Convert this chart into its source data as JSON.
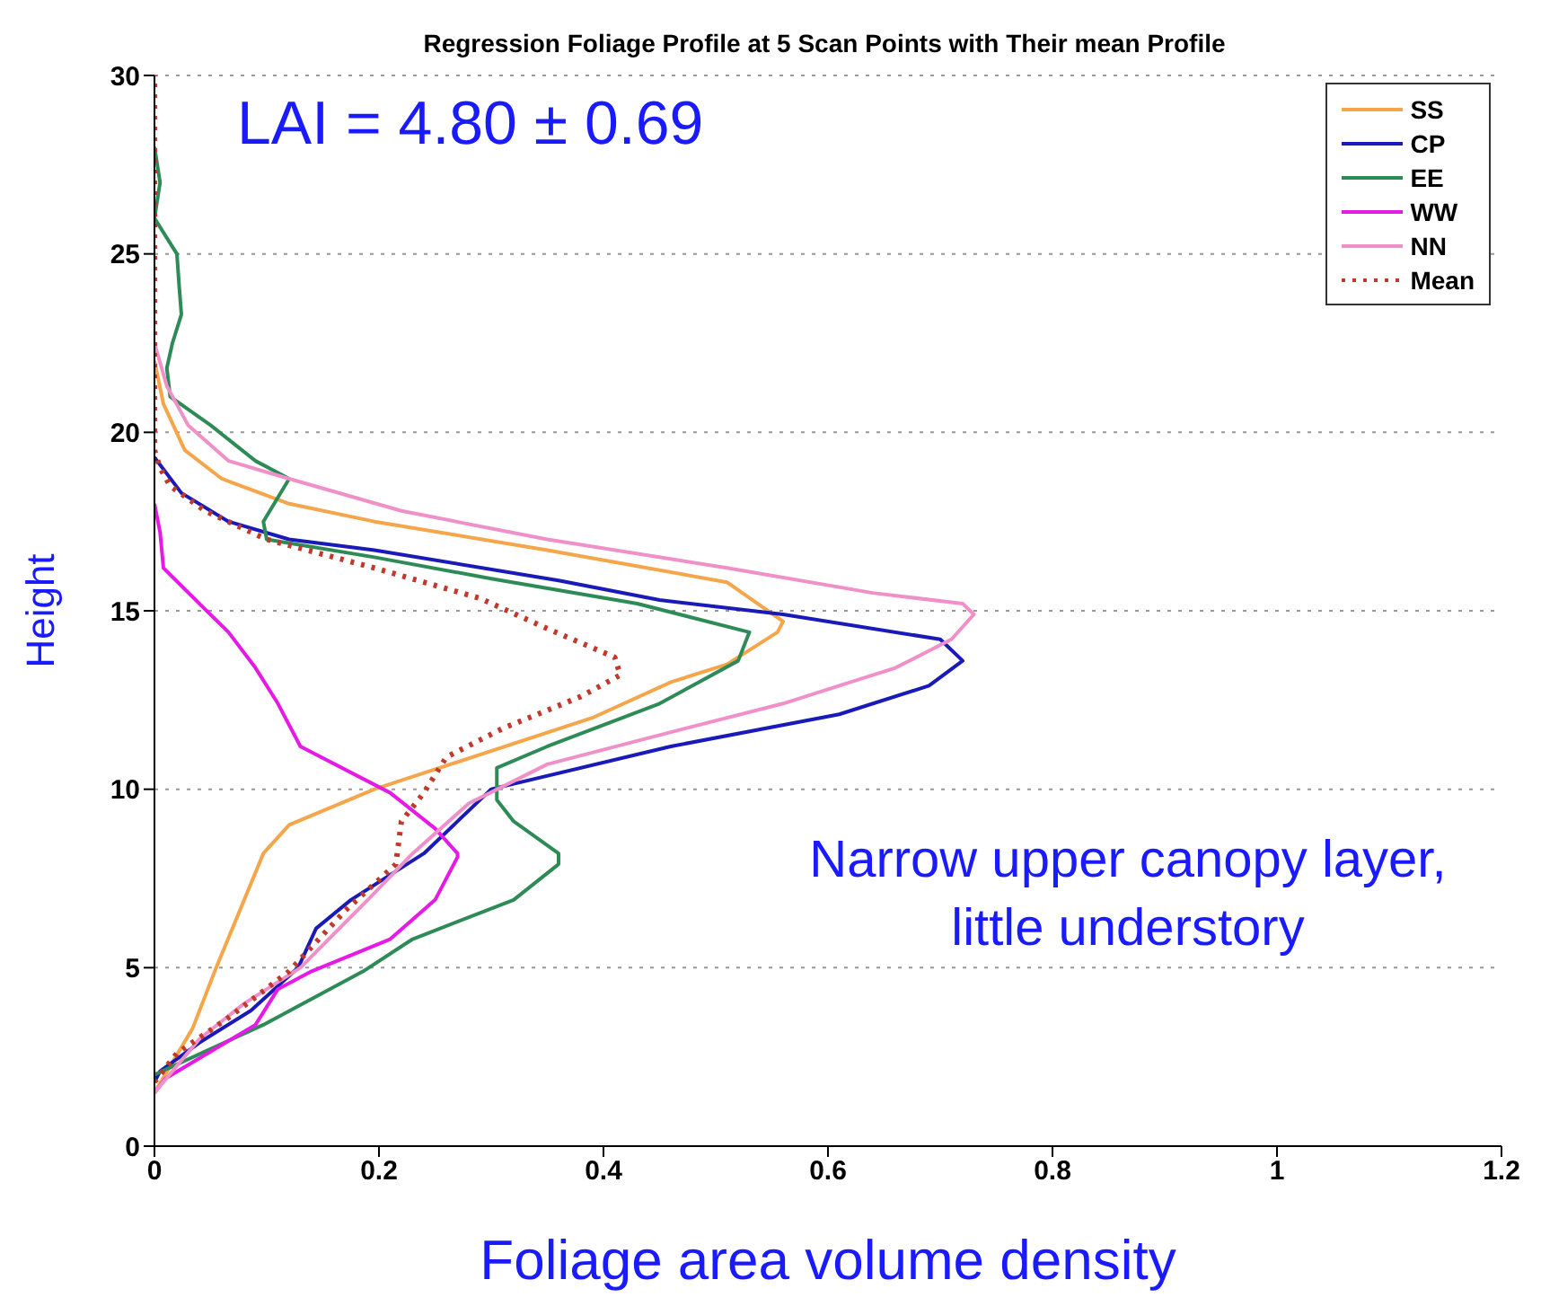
{
  "chart_data": {
    "type": "line",
    "title": "Regression Foliage Profile at 5 Scan Points with Their mean Profile",
    "xlabel": "Foliage area volume density",
    "ylabel": "Height",
    "annotations": [
      "LAI = 4.80 ± 0.69",
      "Narrow upper canopy layer, little understory"
    ],
    "xlim": [
      0,
      1.2
    ],
    "xticks": [
      0,
      0.2,
      0.4,
      0.6,
      0.8,
      1,
      1.2
    ],
    "ylim": [
      0,
      30
    ],
    "yticks": [
      0,
      5,
      10,
      15,
      20,
      25,
      30
    ],
    "grid": "y",
    "legend": "top right",
    "marker": "none",
    "series": [
      {
        "name": "SS",
        "color": "#f5a54a",
        "x": [
          0,
          0.034,
          0.055,
          0.097,
          0.12,
          0.196,
          0.39,
          0.46,
          0.51,
          0.555,
          0.56,
          0.51,
          0.35,
          0.196,
          0.12,
          0.06,
          0.027,
          0.008,
          0
        ],
        "values": [
          1.5,
          3.3,
          5,
          8.2,
          9,
          10,
          12,
          13,
          13.5,
          14.4,
          14.7,
          15.8,
          16.7,
          17.5,
          18,
          18.7,
          19.5,
          20.8,
          22
        ]
      },
      {
        "name": "CP",
        "color": "#1a1ab8",
        "x": [
          0,
          0.005,
          0.04,
          0.086,
          0.128,
          0.144,
          0.175,
          0.24,
          0.3,
          0.46,
          0.61,
          0.69,
          0.72,
          0.7,
          0.56,
          0.45,
          0.36,
          0.196,
          0.12,
          0.066,
          0.024,
          0
        ],
        "values": [
          1.8,
          2.1,
          2.9,
          3.8,
          5,
          6.1,
          6.9,
          8.2,
          10,
          11.2,
          12.1,
          12.9,
          13.6,
          14.2,
          14.9,
          15.3,
          15.85,
          16.7,
          17,
          17.5,
          18.3,
          19.3
        ]
      },
      {
        "name": "EE",
        "color": "#2e8b57",
        "x": [
          0,
          0.097,
          0.186,
          0.23,
          0.32,
          0.36,
          0.36,
          0.32,
          0.305,
          0.305,
          0.35,
          0.45,
          0.52,
          0.53,
          0.43,
          0.3,
          0.196,
          0.1,
          0.097,
          0.12,
          0.09,
          0.05,
          0.014,
          0.011,
          0.016,
          0.024,
          0.022,
          0.02,
          0,
          0.005,
          0
        ],
        "values": [
          2,
          3.4,
          4.9,
          5.8,
          6.9,
          7.9,
          8.2,
          9.1,
          9.7,
          10.6,
          11.2,
          12.4,
          13.6,
          14.4,
          15.2,
          15.9,
          16.5,
          17,
          17.5,
          18.7,
          19.2,
          20.2,
          21,
          21.8,
          22.5,
          23.3,
          24.1,
          25,
          26,
          27,
          28
        ]
      },
      {
        "name": "WW",
        "color": "#e619e6",
        "x": [
          0,
          0.01,
          0.09,
          0.11,
          0.14,
          0.21,
          0.25,
          0.27,
          0.27,
          0.25,
          0.21,
          0.13,
          0.11,
          0.09,
          0.066,
          0.04,
          0.008,
          0.005,
          0
        ],
        "values": [
          1.5,
          1.9,
          3.4,
          4.4,
          4.9,
          5.8,
          6.9,
          8.1,
          8.2,
          8.9,
          9.9,
          11.2,
          12.4,
          13.4,
          14.4,
          15.2,
          16.2,
          17.2,
          18
        ]
      },
      {
        "name": "NN",
        "color": "#f090c8",
        "x": [
          0,
          0.04,
          0.08,
          0.13,
          0.19,
          0.23,
          0.28,
          0.35,
          0.46,
          0.56,
          0.66,
          0.71,
          0.73,
          0.72,
          0.64,
          0.51,
          0.35,
          0.22,
          0.12,
          0.066,
          0.03,
          0.011,
          0
        ],
        "values": [
          1.5,
          3,
          4,
          5,
          6.9,
          8.2,
          9.6,
          10.7,
          11.6,
          12.4,
          13.4,
          14.2,
          14.9,
          15.2,
          15.5,
          16.2,
          17,
          17.8,
          18.7,
          19.2,
          20.2,
          21.3,
          22.5
        ]
      },
      {
        "name": "Mean",
        "color": "#c0392b",
        "line_style": "dotted",
        "x": [
          0,
          0.02,
          0.066,
          0.12,
          0.17,
          0.215,
          0.22,
          0.24,
          0.26,
          0.31,
          0.38,
          0.415,
          0.41,
          0.35,
          0.29,
          0.196,
          0.1,
          0.045,
          0.014,
          0.005,
          0,
          0
        ],
        "values": [
          1.8,
          2.6,
          3.6,
          4.9,
          6.6,
          7.9,
          9.1,
          9.9,
          10.9,
          11.7,
          12.6,
          13.2,
          13.7,
          14.5,
          15.35,
          16.2,
          17,
          17.8,
          18.5,
          19,
          19.5,
          30
        ]
      }
    ]
  }
}
